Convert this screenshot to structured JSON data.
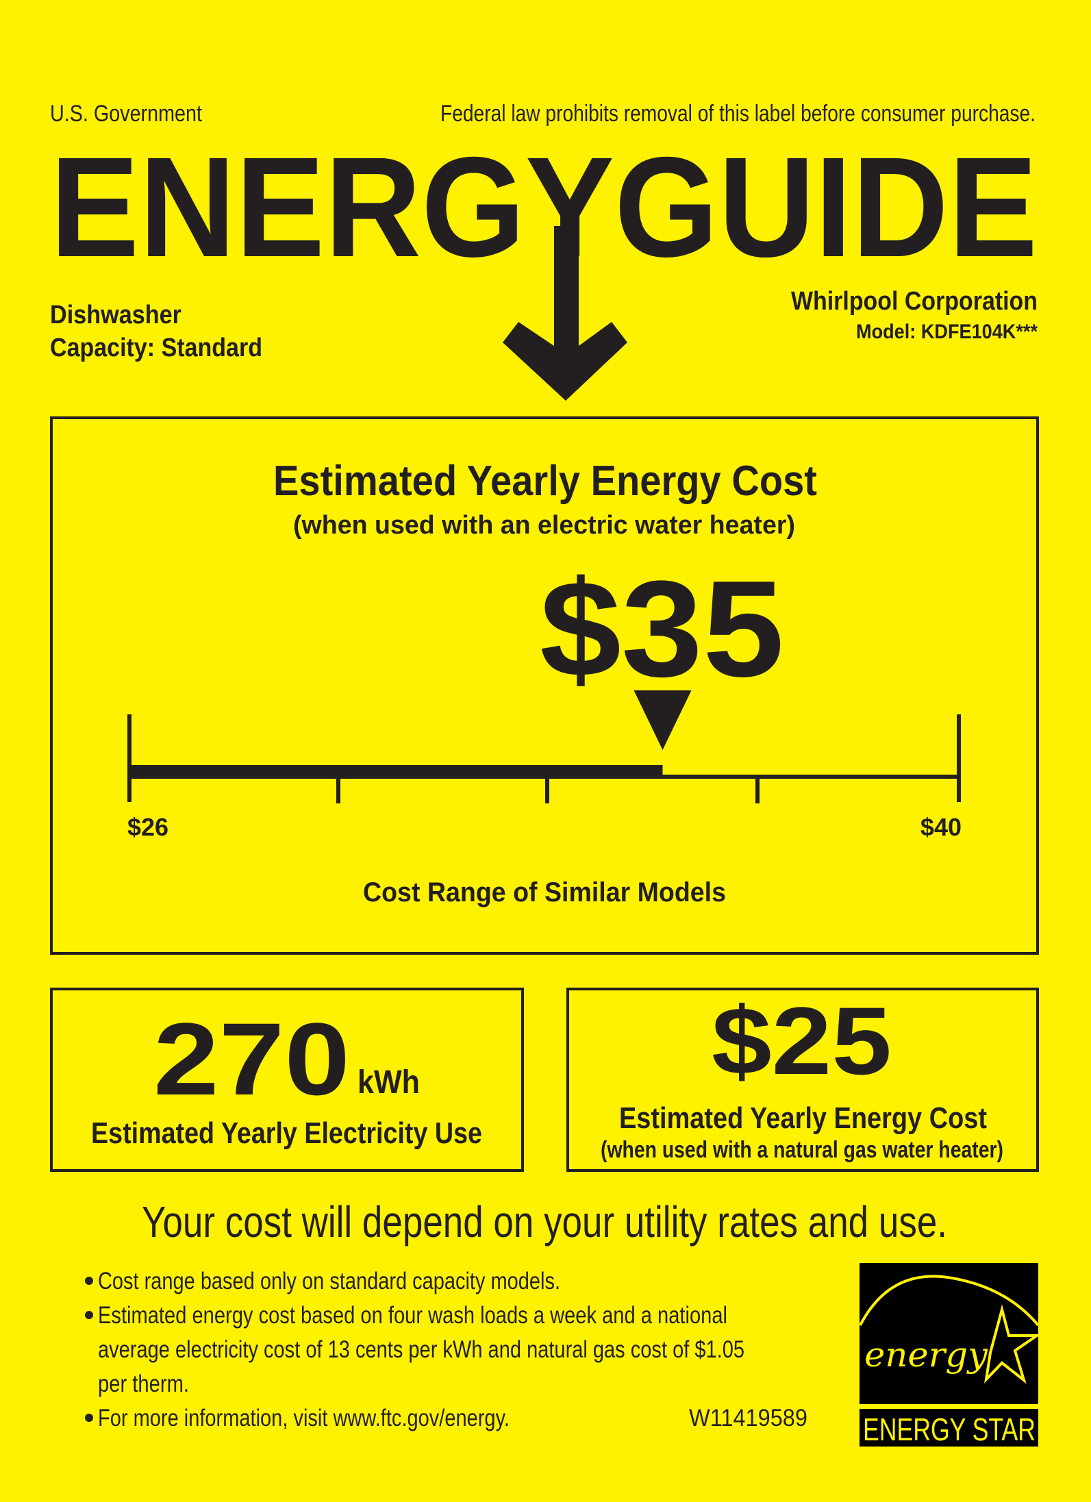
{
  "header": {
    "government": "U.S. Government",
    "legal_notice": "Federal law prohibits removal of this label before consumer purchase.",
    "title": "ENERGYGUIDE",
    "product_type": "Dishwasher",
    "capacity": "Capacity: Standard",
    "manufacturer": "Whirlpool Corporation",
    "model": "Model: KDFE104K***"
  },
  "main_cost": {
    "title": "Estimated Yearly Energy Cost",
    "subtitle": "(when used with an electric water heater)",
    "value": "$35",
    "range_min_label": "$26",
    "range_max_label": "$40",
    "range_caption": "Cost Range of Similar Models",
    "range_min": 26,
    "range_max": 40,
    "current": 35
  },
  "electricity": {
    "value": "270",
    "unit": "kWh",
    "label": "Estimated Yearly Electricity Use"
  },
  "gas_cost": {
    "value": "$25",
    "label": "Estimated Yearly Energy Cost",
    "sublabel": "(when used with a natural gas water heater)"
  },
  "disclaimer": "Your cost will depend on your utility rates and use.",
  "notes": [
    "Cost range based only on standard capacity models.",
    "Estimated energy cost based on four wash loads a week and a national",
    "average electricity cost of 13 cents per kWh and natural gas cost of $1.05",
    "per therm.",
    "For more information, visit www.ftc.gov/energy."
  ],
  "label_code": "W11419589",
  "energy_star": {
    "script": "energy",
    "text": "ENERGY STAR"
  },
  "colors": {
    "background": "#fff200",
    "ink": "#231f20"
  }
}
